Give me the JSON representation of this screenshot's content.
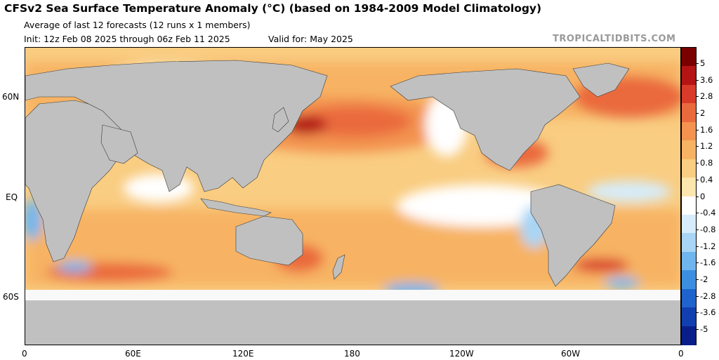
{
  "title": "CFSv2 Sea Surface Temperature Anomaly (°C) (based on 1984-2009 Model Climatology)",
  "subtitle_line1": "Average of last 12 forecasts (12 runs x 1 members)",
  "init": "Init: 12z Feb 08 2025 through 06z Feb 11 2025",
  "valid": "Valid for: May 2025",
  "credit": "TROPICALTIDBITS.COM",
  "lat_labels": [
    "60N",
    "EQ",
    "60S"
  ],
  "lon_labels": [
    "0",
    "60E",
    "120E",
    "180",
    "120W",
    "60W",
    "0"
  ],
  "colorbar": {
    "labels": [
      "5",
      "3.6",
      "2.8",
      "2",
      "1.6",
      "1.2",
      "0.8",
      "0.4",
      "0",
      "-0.4",
      "-0.8",
      "-1.2",
      "-1.6",
      "-2",
      "-2.8",
      "-3.6",
      "-5"
    ],
    "colors": [
      "#7a0000",
      "#b51414",
      "#d93a2a",
      "#ea6a3e",
      "#f3934f",
      "#f7b364",
      "#f9cd82",
      "#fbe6ad",
      "#ffffff",
      "#d7ecfa",
      "#a8d5f5",
      "#6fb6ee",
      "#3c8fe0",
      "#1f64cc",
      "#123fb0",
      "#0a1e8a"
    ]
  },
  "land_color": "#c0c0c0"
}
